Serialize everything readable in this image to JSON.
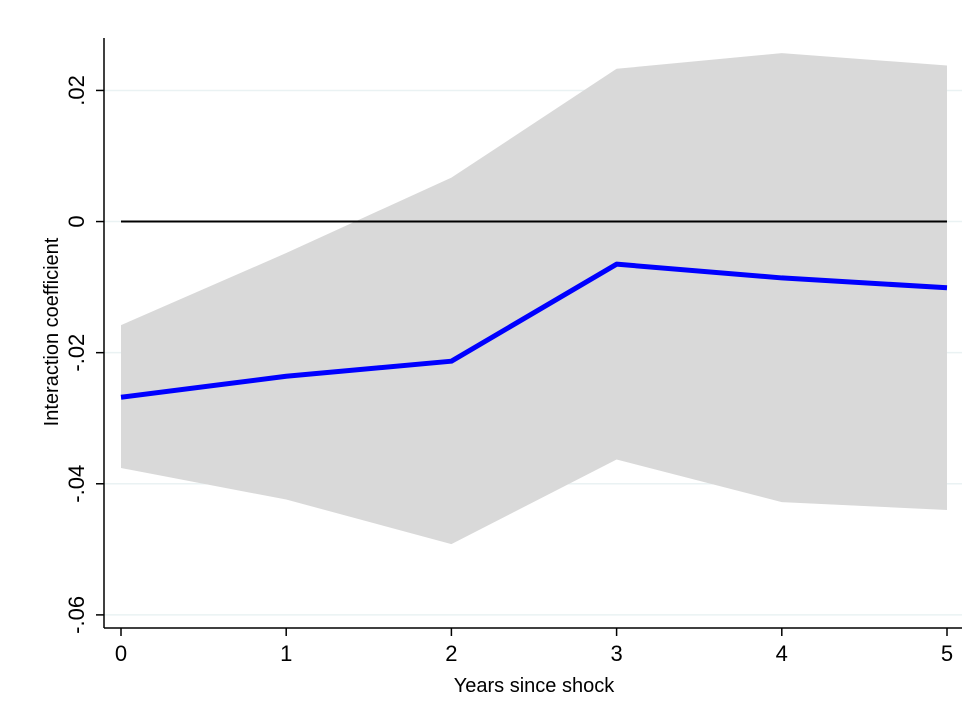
{
  "chart_data": {
    "type": "line",
    "title": "",
    "xlabel": "Years since shock",
    "ylabel": "Interaction coefficient",
    "x": [
      0,
      1,
      2,
      3,
      4,
      5
    ],
    "xticks": [
      0,
      1,
      2,
      3,
      4,
      5
    ],
    "xtick_labels": [
      "0",
      "1",
      "2",
      "3",
      "4",
      "5"
    ],
    "yticks": [
      -0.06,
      -0.04,
      -0.02,
      0,
      0.02
    ],
    "ytick_labels": [
      "-.06",
      "-.04",
      "-.02",
      "0",
      ".02"
    ],
    "xlim": [
      0,
      5
    ],
    "ylim": [
      -0.062,
      0.028
    ],
    "grid": true,
    "reference_line": 0,
    "series": [
      {
        "type": "line",
        "values": [
          -0.0268,
          -0.0236,
          -0.0213,
          -0.0065,
          -0.0086,
          -0.0101
        ],
        "color": "#0000ff"
      },
      {
        "type": "area-band",
        "upper": [
          -0.0158,
          -0.0048,
          0.0067,
          0.0233,
          0.0257,
          0.0238
        ],
        "lower": [
          -0.0376,
          -0.0424,
          -0.0492,
          -0.0363,
          -0.0428,
          -0.044
        ],
        "color": "#d9d9d9"
      }
    ],
    "colors": {
      "line": "#0000ff",
      "band": "#d9d9d9",
      "grid": "#eaf2f3",
      "zero_line": "#000000",
      "axis": "#000000"
    }
  }
}
